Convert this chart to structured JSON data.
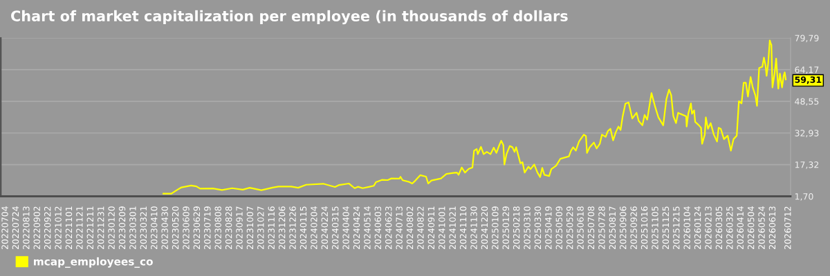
{
  "chart_data": {
    "type": "line",
    "title": "Chart of market capitalization per employee (in thousands of dollars",
    "x": [
      "2023-04-26",
      "2023-05-11",
      "2023-05-22",
      "2023-05-30",
      "2023-06-17",
      "2023-06-27",
      "2023-07-04",
      "2023-07-28",
      "2023-08-14",
      "2023-09-02",
      "2023-09-22",
      "2023-10-05",
      "2023-10-27",
      "2023-11-17",
      "2023-11-28",
      "2023-12-22",
      "2024-01-04",
      "2024-01-19",
      "2024-02-20",
      "2024-03-13",
      "2024-03-21",
      "2024-04-08",
      "2024-04-19",
      "2024-04-25",
      "2024-05-04",
      "2024-05-17",
      "2024-05-25",
      "2024-05-29",
      "2024-06-09",
      "2024-06-20",
      "2024-06-27",
      "2024-07-12",
      "2024-07-14",
      "2024-07-18",
      "2024-07-29",
      "2024-08-05",
      "2024-08-11",
      "2024-08-20",
      "2024-08-31",
      "2024-09-04",
      "2024-09-10",
      "2024-09-28",
      "2024-10-08",
      "2024-10-21",
      "2024-10-28",
      "2024-10-31",
      "2024-11-06",
      "2024-11-12",
      "2024-11-19",
      "2024-11-26",
      "2024-11-29",
      "2024-12-04",
      "2024-12-06",
      "2024-12-12",
      "2024-12-17",
      "2024-12-23",
      "2024-12-30",
      "2025-01-05",
      "2025-01-10",
      "2025-01-15",
      "2025-01-19",
      "2025-01-23",
      "2025-01-25",
      "2025-01-29",
      "2025-02-04",
      "2025-02-09",
      "2025-02-13",
      "2025-02-16",
      "2025-02-24",
      "2025-02-28",
      "2025-03-04",
      "2025-03-11",
      "2025-03-15",
      "2025-03-22",
      "2025-03-28",
      "2025-04-02",
      "2025-04-06",
      "2025-04-10",
      "2025-04-19",
      "2025-04-23",
      "2025-05-02",
      "2025-05-10",
      "2025-05-26",
      "2025-05-30",
      "2025-06-03",
      "2025-06-08",
      "2025-06-14",
      "2025-06-23",
      "2025-06-27",
      "2025-06-29",
      "2025-07-04",
      "2025-07-12",
      "2025-07-17",
      "2025-07-23",
      "2025-07-27",
      "2025-08-03",
      "2025-08-07",
      "2025-08-12",
      "2025-08-17",
      "2025-08-22",
      "2025-08-27",
      "2025-08-31",
      "2025-09-04",
      "2025-09-09",
      "2025-09-15",
      "2025-09-22",
      "2025-09-30",
      "2025-10-04",
      "2025-10-11",
      "2025-10-15",
      "2025-10-20",
      "2025-10-28",
      "2025-11-04",
      "2025-11-10",
      "2025-11-19",
      "2025-11-25",
      "2025-11-30",
      "2025-12-04",
      "2025-12-08",
      "2025-12-13",
      "2025-12-17",
      "2025-12-21",
      "2026-01-01",
      "2026-01-02",
      "2026-01-05",
      "2026-01-10",
      "2026-01-12",
      "2026-01-16",
      "2026-01-18",
      "2026-01-25",
      "2026-01-29",
      "2026-01-31",
      "2026-02-05",
      "2026-02-07",
      "2026-02-11",
      "2026-02-16",
      "2026-02-22",
      "2026-02-28",
      "2026-03-03",
      "2026-03-07",
      "2026-03-13",
      "2026-03-20",
      "2026-03-26",
      "2026-03-31",
      "2026-04-06",
      "2026-04-10",
      "2026-04-15",
      "2026-04-19",
      "2026-04-23",
      "2026-04-27",
      "2026-05-02",
      "2026-05-06",
      "2026-05-11",
      "2026-05-14",
      "2026-05-18",
      "2026-05-24",
      "2026-05-27",
      "2026-05-30",
      "2026-06-01",
      "2026-06-04",
      "2026-06-07",
      "2026-06-09",
      "2026-06-10",
      "2026-06-12",
      "2026-06-16",
      "2026-06-19",
      "2026-06-21",
      "2026-06-23",
      "2026-06-26",
      "2026-06-30",
      "2026-07-03",
      "2026-07-05",
      "2026-07-07"
    ],
    "series": [
      {
        "name": "mcap_employees_co",
        "color": "#ffff00",
        "values": [
          3.0,
          3.0,
          4.9,
          6.1,
          7.0,
          6.6,
          5.5,
          5.6,
          4.8,
          5.7,
          5.0,
          5.9,
          4.7,
          6.0,
          6.5,
          6.5,
          5.9,
          7.4,
          7.9,
          6.3,
          7.3,
          8.0,
          5.7,
          6.4,
          5.7,
          6.4,
          6.9,
          8.7,
          9.8,
          9.7,
          10.5,
          10.4,
          11.3,
          9.6,
          8.9,
          8.0,
          9.5,
          12.1,
          11.4,
          8.0,
          9.5,
          10.5,
          12.7,
          13.2,
          13.4,
          12.3,
          15.9,
          13.4,
          15.2,
          15.9,
          24.2,
          25.0,
          22.5,
          26.1,
          22.5,
          23.6,
          22.5,
          25.7,
          23.1,
          26.7,
          29.1,
          27.0,
          17.4,
          22.5,
          26.5,
          25.9,
          23.6,
          25.9,
          18.0,
          18.5,
          13.4,
          16.3,
          15.1,
          17.4,
          13.4,
          11.2,
          15.7,
          12.3,
          11.7,
          15.1,
          16.8,
          20.2,
          21.4,
          24.2,
          25.9,
          24.2,
          28.7,
          32.1,
          31.4,
          23.1,
          25.9,
          28.2,
          25.3,
          27.6,
          32.1,
          31.0,
          33.8,
          35.0,
          29.3,
          33.3,
          36.1,
          34.4,
          41.2,
          47.4,
          48.0,
          40.1,
          42.9,
          38.9,
          36.7,
          41.8,
          39.5,
          52.6,
          45.7,
          40.6,
          36.7,
          49.7,
          54.3,
          51.5,
          41.2,
          37.8,
          42.9,
          42.4,
          41.2,
          36.1,
          42.4,
          47.5,
          42.4,
          44.1,
          38.4,
          36.7,
          35.5,
          27.6,
          32.1,
          40.6,
          35.0,
          37.8,
          32.1,
          28.7,
          35.5,
          35.0,
          29.9,
          31.6,
          24.2,
          29.9,
          31.6,
          48.6,
          47.5,
          57.7,
          57.7,
          50.9,
          60.5,
          55.4,
          51.4,
          46.3,
          65.0,
          65.6,
          70.1,
          66.2,
          61.1,
          67.3,
          78.6,
          76.9,
          76.4,
          55.4,
          62.2,
          69.6,
          61.6,
          54.8,
          62.2,
          55.4,
          61.1,
          62.8,
          59.31
        ]
      }
    ],
    "xlim": [
      "2022-06-25",
      "2026-07-16"
    ],
    "xticks": [
      {
        "value": "2022-07-04",
        "label": "20220704"
      },
      {
        "value": "2022-07-24",
        "label": "20220724"
      },
      {
        "value": "2022-08-13",
        "label": "20220813"
      },
      {
        "value": "2022-09-02",
        "label": "20220902"
      },
      {
        "value": "2022-09-22",
        "label": "20220922"
      },
      {
        "value": "2022-10-12",
        "label": "20221012"
      },
      {
        "value": "2022-11-01",
        "label": "20221101"
      },
      {
        "value": "2022-11-21",
        "label": "20221121"
      },
      {
        "value": "2022-12-11",
        "label": "20221211"
      },
      {
        "value": "2022-12-31",
        "label": "20221231"
      },
      {
        "value": "2023-01-20",
        "label": "20230120"
      },
      {
        "value": "2023-02-09",
        "label": "20230209"
      },
      {
        "value": "2023-03-01",
        "label": "20230301"
      },
      {
        "value": "2023-03-21",
        "label": "20230321"
      },
      {
        "value": "2023-04-10",
        "label": "20230410"
      },
      {
        "value": "2023-04-30",
        "label": "20230430"
      },
      {
        "value": "2023-05-20",
        "label": "20230520"
      },
      {
        "value": "2023-06-09",
        "label": "20230609"
      },
      {
        "value": "2023-06-29",
        "label": "20230629"
      },
      {
        "value": "2023-07-19",
        "label": "20230719"
      },
      {
        "value": "2023-08-08",
        "label": "20230808"
      },
      {
        "value": "2023-08-28",
        "label": "20230828"
      },
      {
        "value": "2023-09-17",
        "label": "20230917"
      },
      {
        "value": "2023-10-07",
        "label": "20231007"
      },
      {
        "value": "2023-10-27",
        "label": "20231027"
      },
      {
        "value": "2023-11-16",
        "label": "20231116"
      },
      {
        "value": "2023-12-06",
        "label": "20231206"
      },
      {
        "value": "2023-12-26",
        "label": "20231226"
      },
      {
        "value": "2024-01-15",
        "label": "20240115"
      },
      {
        "value": "2024-02-04",
        "label": "20240204"
      },
      {
        "value": "2024-02-24",
        "label": "20240224"
      },
      {
        "value": "2024-03-15",
        "label": "20240315"
      },
      {
        "value": "2024-04-04",
        "label": "20240404"
      },
      {
        "value": "2024-04-24",
        "label": "20240424"
      },
      {
        "value": "2024-05-14",
        "label": "20240514"
      },
      {
        "value": "2024-06-03",
        "label": "20240603"
      },
      {
        "value": "2024-06-23",
        "label": "20240623"
      },
      {
        "value": "2024-07-13",
        "label": "20240713"
      },
      {
        "value": "2024-08-02",
        "label": "20240802"
      },
      {
        "value": "2024-08-22",
        "label": "20240822"
      },
      {
        "value": "2024-09-11",
        "label": "20240911"
      },
      {
        "value": "2024-10-01",
        "label": "20241001"
      },
      {
        "value": "2024-10-21",
        "label": "20241021"
      },
      {
        "value": "2024-11-10",
        "label": "20241110"
      },
      {
        "value": "2024-11-30",
        "label": "20241130"
      },
      {
        "value": "2024-12-20",
        "label": "20241220"
      },
      {
        "value": "2025-01-09",
        "label": "20250109"
      },
      {
        "value": "2025-01-29",
        "label": "20250129"
      },
      {
        "value": "2025-02-18",
        "label": "20250218"
      },
      {
        "value": "2025-03-10",
        "label": "20250310"
      },
      {
        "value": "2025-03-30",
        "label": "20250330"
      },
      {
        "value": "2025-04-19",
        "label": "20250419"
      },
      {
        "value": "2025-05-09",
        "label": "20250509"
      },
      {
        "value": "2025-05-29",
        "label": "20250529"
      },
      {
        "value": "2025-06-18",
        "label": "20250618"
      },
      {
        "value": "2025-07-08",
        "label": "20250708"
      },
      {
        "value": "2025-07-28",
        "label": "20250728"
      },
      {
        "value": "2025-08-17",
        "label": "20250817"
      },
      {
        "value": "2025-09-06",
        "label": "20250906"
      },
      {
        "value": "2025-09-26",
        "label": "20250926"
      },
      {
        "value": "2025-10-16",
        "label": "20251016"
      },
      {
        "value": "2025-11-05",
        "label": "20251105"
      },
      {
        "value": "2025-11-25",
        "label": "20251125"
      },
      {
        "value": "2025-12-15",
        "label": "20251215"
      },
      {
        "value": "2026-01-04",
        "label": "20260104"
      },
      {
        "value": "2026-01-24",
        "label": "20260124"
      },
      {
        "value": "2026-02-13",
        "label": "20260213"
      },
      {
        "value": "2026-03-05",
        "label": "20260305"
      },
      {
        "value": "2026-03-25",
        "label": "20260325"
      },
      {
        "value": "2026-04-14",
        "label": "20260414"
      },
      {
        "value": "2026-05-04",
        "label": "20260504"
      },
      {
        "value": "2026-05-24",
        "label": "20260524"
      },
      {
        "value": "2026-06-13",
        "label": "20260613"
      },
      {
        "value": "2026-07-12",
        "label": "20260712"
      }
    ],
    "ylim": [
      1.7,
      79.79
    ],
    "yticks": [
      {
        "value": 1.7,
        "label": "1,70"
      },
      {
        "value": 17.32,
        "label": "17,32"
      },
      {
        "value": 32.93,
        "label": "32,93"
      },
      {
        "value": 48.55,
        "label": "48,55"
      },
      {
        "value": 64.17,
        "label": "64,17"
      },
      {
        "value": 79.79,
        "label": "79,79"
      }
    ],
    "annotations": [
      {
        "text": "59,31",
        "x": "2026-07-07",
        "y": 59.31
      }
    ],
    "grid": "y",
    "legend": "bottom left"
  }
}
